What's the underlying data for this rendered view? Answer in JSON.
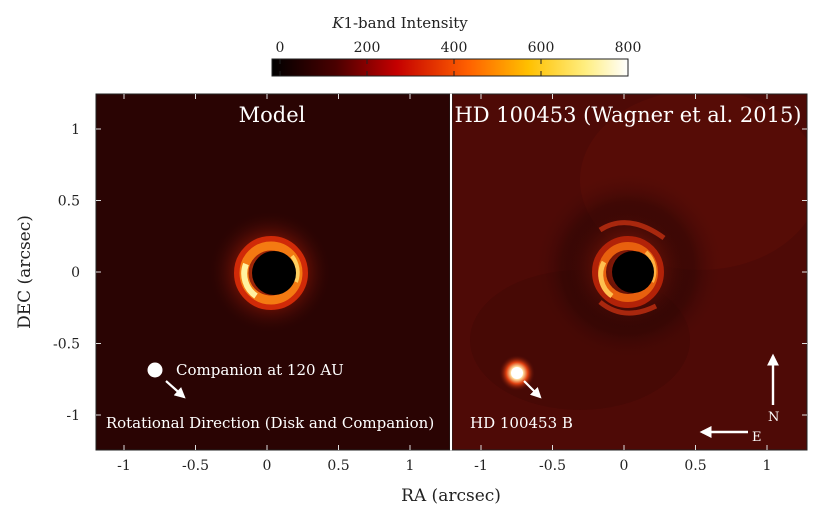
{
  "colorbar": {
    "label_symbol": "K",
    "label_rest": "1-band Intensity",
    "ticks": [
      "0",
      "200",
      "400",
      "600",
      "800"
    ],
    "range": [
      0,
      800
    ]
  },
  "panels": [
    {
      "title": "Model",
      "annotations": {
        "companion": "Companion at 120 AU",
        "direction": "Rotational Direction (Disk and Companion)"
      }
    },
    {
      "title": "HD 100453 (Wagner et al. 2015)",
      "annotations": {
        "companion": "HD 100453 B",
        "north": "N",
        "east": "E"
      }
    }
  ],
  "axes": {
    "xlabel": "RA (arcsec)",
    "ylabel": "DEC (arcsec)",
    "xticks": [
      "-1",
      "-0.5",
      "0",
      "0.5",
      "1"
    ],
    "yticks": [
      "1",
      "0.5",
      "0",
      "-0.5",
      "-1"
    ]
  },
  "colors": {
    "model_bg": "#2a0403",
    "obs_bg": "#4e0a06",
    "ring_hot": "#fff3a0",
    "ring_warm": "#f07a10",
    "ring_outer": "#a01608"
  }
}
